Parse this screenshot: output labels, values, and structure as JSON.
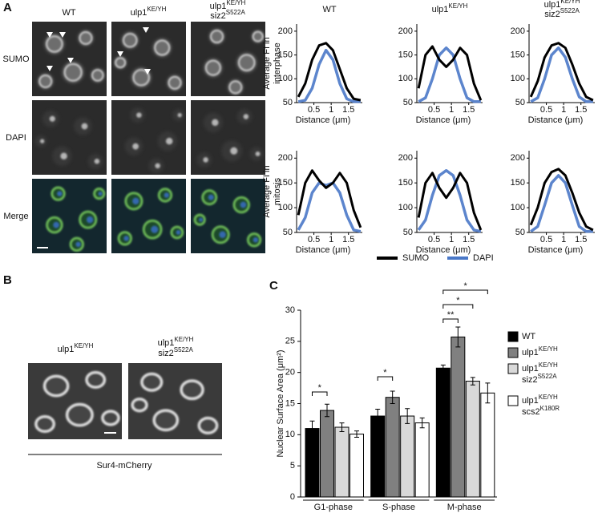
{
  "panel_a": {
    "label": "A",
    "columns": [
      [
        {
          "base": "WT"
        }
      ],
      [
        {
          "base": "ulp1",
          "sup": "KE/YH"
        }
      ],
      [
        {
          "base": "ulp1",
          "sup": "KE/YH"
        },
        {
          "base": "siz2",
          "sup": "S522A"
        }
      ]
    ],
    "rows": [
      "SUMO",
      "DAPI",
      "Merge"
    ]
  },
  "panel_b": {
    "label": "B",
    "columns": [
      [
        {
          "base": "ulp1",
          "sup": "KE/YH"
        }
      ],
      [
        {
          "base": "ulp1",
          "sup": "KE/YH"
        },
        {
          "base": "siz2",
          "sup": "S522A"
        }
      ]
    ],
    "caption": "Sur4-mCherry"
  },
  "panel_c": {
    "label": "C"
  },
  "profile_legend": [
    {
      "name": "SUMO",
      "color": "#000000"
    },
    {
      "name": "DAPI",
      "color": "#4a78c8"
    }
  ],
  "chart_data": [
    {
      "type": "line",
      "title": [
        {
          "base": "WT"
        }
      ],
      "ylabel": [
        "Average FI in",
        "interphase"
      ],
      "xlabel": "Distance (μm)",
      "x": [
        0.05,
        0.25,
        0.45,
        0.65,
        0.85,
        1.05,
        1.25,
        1.45,
        1.65,
        1.85
      ],
      "series": [
        {
          "values": [
            62,
            90,
            140,
            170,
            175,
            160,
            120,
            80,
            58,
            55
          ]
        },
        {
          "values": [
            52,
            55,
            80,
            130,
            160,
            140,
            90,
            58,
            52,
            52
          ]
        }
      ],
      "xlim": [
        0,
        1.9
      ],
      "xticks": [
        0.5,
        1,
        1.5
      ],
      "ylim": [
        50,
        215
      ],
      "yticks": [
        50,
        100,
        150,
        200
      ]
    },
    {
      "type": "line",
      "title": [
        {
          "base": "ulp1",
          "sup": "KE/YH"
        }
      ],
      "xlabel": "Distance (μm)",
      "x": [
        0.05,
        0.25,
        0.45,
        0.65,
        0.85,
        1.05,
        1.25,
        1.45,
        1.65,
        1.85
      ],
      "series": [
        {
          "values": [
            80,
            150,
            168,
            140,
            125,
            140,
            165,
            150,
            90,
            55
          ]
        },
        {
          "values": [
            52,
            60,
            100,
            150,
            165,
            150,
            100,
            60,
            52,
            52
          ]
        }
      ],
      "xlim": [
        0,
        1.9
      ],
      "xticks": [
        0.5,
        1,
        1.5
      ],
      "ylim": [
        50,
        215
      ],
      "yticks": [
        50,
        100,
        150,
        200
      ]
    },
    {
      "type": "line",
      "title": [
        {
          "base": "ulp1",
          "sup": "KE/YH"
        },
        {
          "base": "siz2",
          "sup": "S522A"
        }
      ],
      "xlabel": "Distance (μm)",
      "x": [
        0.05,
        0.25,
        0.45,
        0.65,
        0.85,
        1.05,
        1.25,
        1.45,
        1.65,
        1.85
      ],
      "series": [
        {
          "values": [
            62,
            95,
            145,
            170,
            175,
            165,
            130,
            90,
            62,
            55
          ]
        },
        {
          "values": [
            52,
            60,
            100,
            150,
            165,
            145,
            100,
            62,
            52,
            52
          ]
        }
      ],
      "xlim": [
        0,
        1.9
      ],
      "xticks": [
        0.5,
        1,
        1.5
      ],
      "ylim": [
        50,
        215
      ],
      "yticks": [
        50,
        100,
        150,
        200
      ]
    },
    {
      "type": "line",
      "ylabel": [
        "Average FI in",
        "mitosis"
      ],
      "xlabel": "Distance (μm)",
      "x": [
        0.05,
        0.25,
        0.45,
        0.65,
        0.85,
        1.05,
        1.25,
        1.45,
        1.65,
        1.85
      ],
      "series": [
        {
          "values": [
            85,
            150,
            175,
            155,
            140,
            150,
            170,
            150,
            95,
            60
          ]
        },
        {
          "values": [
            55,
            80,
            130,
            150,
            145,
            150,
            130,
            85,
            55,
            52
          ]
        }
      ],
      "xlim": [
        0,
        1.9
      ],
      "xticks": [
        0.5,
        1,
        1.5
      ],
      "ylim": [
        50,
        215
      ],
      "yticks": [
        50,
        100,
        150,
        200
      ]
    },
    {
      "type": "line",
      "xlabel": "Distance (μm)",
      "x": [
        0.05,
        0.25,
        0.45,
        0.65,
        0.85,
        1.05,
        1.25,
        1.45,
        1.65,
        1.85
      ],
      "series": [
        {
          "values": [
            80,
            150,
            170,
            140,
            120,
            140,
            170,
            150,
            90,
            55
          ]
        },
        {
          "values": [
            55,
            75,
            125,
            165,
            175,
            165,
            125,
            75,
            55,
            52
          ]
        }
      ],
      "xlim": [
        0,
        1.9
      ],
      "xticks": [
        0.5,
        1,
        1.5
      ],
      "ylim": [
        50,
        215
      ],
      "yticks": [
        50,
        100,
        150,
        200
      ]
    },
    {
      "type": "line",
      "xlabel": "Distance (μm)",
      "x": [
        0.05,
        0.25,
        0.45,
        0.65,
        0.85,
        1.05,
        1.25,
        1.45,
        1.65,
        1.85
      ],
      "series": [
        {
          "values": [
            65,
            100,
            150,
            172,
            178,
            165,
            130,
            90,
            62,
            55
          ]
        },
        {
          "values": [
            52,
            62,
            105,
            150,
            165,
            150,
            105,
            62,
            52,
            52
          ]
        }
      ],
      "xlim": [
        0,
        1.9
      ],
      "xticks": [
        0.5,
        1,
        1.5
      ],
      "ylim": [
        50,
        215
      ],
      "yticks": [
        50,
        100,
        150,
        200
      ]
    },
    {
      "type": "bar",
      "ylabel": "Nuclear Surface Area (μm²)",
      "categories": [
        "G1-phase",
        "S-phase",
        "M-phase"
      ],
      "series": [
        {
          "name": [
            {
              "base": "WT"
            }
          ],
          "color": "#000000",
          "values": [
            11.0,
            13.0,
            20.7
          ],
          "errors": [
            1.2,
            1.1,
            0.5
          ]
        },
        {
          "name": [
            {
              "base": "ulp1",
              "sup": "KE/YH"
            }
          ],
          "color": "#808080",
          "values": [
            13.9,
            16.0,
            25.7
          ],
          "errors": [
            1.0,
            1.0,
            1.6
          ]
        },
        {
          "name": [
            {
              "base": "ulp1",
              "sup": "KE/YH"
            },
            {
              "base": "siz2",
              "sup": "S522A"
            }
          ],
          "color": "#d9d9d9",
          "values": [
            11.2,
            13.0,
            18.6
          ],
          "errors": [
            0.7,
            1.2,
            0.6
          ]
        },
        {
          "name": [
            {
              "base": "ulp1",
              "sup": "KE/YH"
            },
            {
              "base": "scs2",
              "sup": "K180R"
            }
          ],
          "color": "#ffffff",
          "values": [
            10.1,
            11.9,
            16.7
          ],
          "errors": [
            0.5,
            0.8,
            1.6
          ]
        }
      ],
      "ylim": [
        0,
        30
      ],
      "yticks": [
        0,
        5,
        10,
        15,
        20,
        25,
        30
      ],
      "annotations": [
        "*",
        "*",
        "**",
        "*",
        "*"
      ]
    }
  ]
}
